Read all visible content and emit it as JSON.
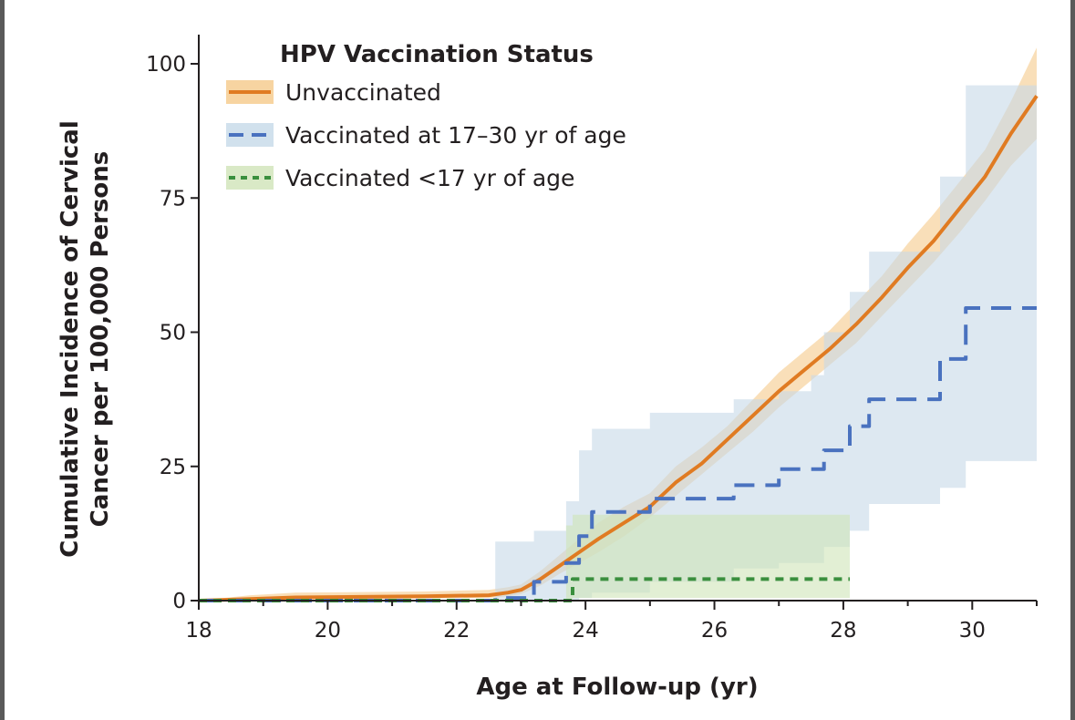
{
  "chart_data": {
    "type": "line",
    "title": "",
    "xlabel": "Age at Follow-up (yr)",
    "ylabel_lines": [
      "Cumulative Incidence of Cervical",
      "Cancer per 100,000 Persons"
    ],
    "xlim": [
      18,
      31
    ],
    "ylim": [
      0,
      105
    ],
    "x_ticks": [
      18,
      20,
      22,
      24,
      26,
      28,
      30
    ],
    "y_ticks": [
      0,
      25,
      50,
      75,
      100
    ],
    "grid": false,
    "legend": {
      "title": "HPV Vaccination Status",
      "placement": "top-left"
    },
    "series": [
      {
        "name": "Unvaccinated",
        "style": "solid",
        "color": "#e07b22",
        "band_color": "#f5c98a",
        "x": [
          18,
          18.8,
          19.5,
          20.5,
          21.5,
          22.5,
          22.8,
          23.0,
          23.3,
          23.6,
          23.9,
          24.2,
          24.6,
          25.0,
          25.4,
          25.8,
          26.2,
          26.6,
          27.0,
          27.4,
          27.8,
          28.2,
          28.6,
          29.0,
          29.4,
          29.8,
          30.2,
          30.6,
          31.0
        ],
        "y": [
          0,
          0.3,
          0.6,
          0.7,
          0.8,
          1.0,
          1.5,
          2.0,
          4.0,
          6.5,
          9.0,
          11.5,
          14.5,
          17.5,
          22.0,
          25.5,
          30.0,
          34.5,
          39.0,
          43.0,
          47.0,
          51.5,
          56.5,
          62.0,
          67.0,
          73.0,
          79.0,
          87.0,
          94.0
        ],
        "lower": [
          0,
          0,
          0.2,
          0.3,
          0.4,
          0.5,
          0.8,
          1.2,
          2.8,
          5.0,
          7.0,
          9.0,
          12.0,
          15.5,
          19.5,
          23.5,
          27.5,
          31.5,
          36.0,
          40.0,
          44.0,
          48.0,
          53.0,
          58.0,
          63.0,
          68.5,
          74.5,
          81.0,
          86.0
        ],
        "upper": [
          0,
          1.0,
          1.5,
          1.6,
          1.7,
          2.0,
          2.5,
          3.0,
          5.5,
          8.5,
          11.5,
          14.5,
          17.5,
          20.0,
          25.0,
          28.5,
          32.5,
          37.5,
          42.5,
          46.5,
          50.5,
          55.5,
          60.5,
          66.5,
          72.0,
          78.0,
          84.0,
          93.0,
          103.0
        ]
      },
      {
        "name": "Vaccinated at 17–30 yr of age",
        "style": "dashed",
        "color": "#4a72bf",
        "band_color": "#c6d9e8",
        "step_x": [
          18,
          22.6,
          23.2,
          23.7,
          23.9,
          24.1,
          25.0,
          26.3,
          27.0,
          27.5,
          27.7,
          28.1,
          28.4,
          29.5,
          29.9,
          31.0
        ],
        "step_y": [
          0,
          0.5,
          3.5,
          7.0,
          12.0,
          16.5,
          19.0,
          21.5,
          24.5,
          24.5,
          28.0,
          32.5,
          37.5,
          45.0,
          54.5,
          54.5
        ],
        "step_lower": [
          0,
          0,
          0,
          0,
          0.5,
          1.5,
          3.5,
          6.0,
          7.0,
          7.0,
          10.0,
          13.0,
          18.0,
          21.0,
          26.0,
          30.5
        ],
        "step_upper": [
          0,
          11.0,
          13.0,
          18.5,
          28.0,
          32.0,
          35.0,
          37.5,
          39.0,
          42.0,
          50.0,
          57.5,
          65.0,
          79.0,
          96.0,
          96.0
        ]
      },
      {
        "name": "Vaccinated <17 yr of age",
        "style": "dotted",
        "color": "#3a8f3e",
        "band_color": "#cfe4b8",
        "step_x": [
          18,
          23.7,
          23.8,
          28.1
        ],
        "step_y": [
          0,
          0.0,
          4.0,
          4.0
        ],
        "step_lower": [
          0,
          0,
          0.5,
          0.5
        ],
        "step_upper": [
          0,
          14.0,
          16.0,
          16.0
        ]
      }
    ]
  }
}
